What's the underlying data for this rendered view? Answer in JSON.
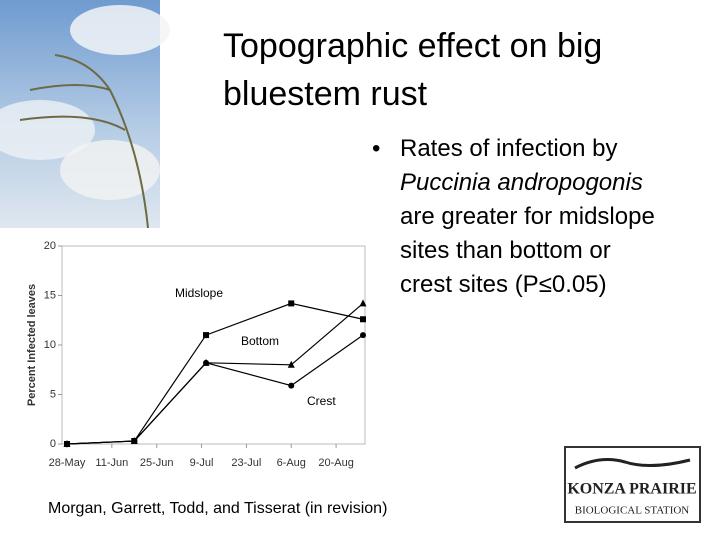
{
  "title": "Topographic effect on big bluestem rust",
  "bullet": {
    "parts": [
      "Rates of infection by ",
      "Puccinia andropogonis",
      " are greater for midslope sites than bottom or crest sites (P≤0.05)"
    ]
  },
  "citation": "Morgan, Garrett, Todd, and Tisserat (in revision)",
  "logo": {
    "line1": "KONZA PRAIRIE",
    "line2": "BIOLOGICAL STATION"
  },
  "chart_data": {
    "type": "line",
    "y_label": "Percent Infected leaves",
    "x": [
      0,
      1.5,
      3.1,
      5,
      6.6
    ],
    "xlim": [
      0,
      6.6
    ],
    "xticks": [
      {
        "value": 0,
        "label": "28-May"
      },
      {
        "value": 1,
        "label": "11-Jun"
      },
      {
        "value": 2,
        "label": "25-Jun"
      },
      {
        "value": 3,
        "label": "9-Jul"
      },
      {
        "value": 4,
        "label": "23-Jul"
      },
      {
        "value": 5,
        "label": "6-Aug"
      },
      {
        "value": 6,
        "label": "20-Aug"
      }
    ],
    "ylim": [
      0,
      20
    ],
    "yticks": [
      0,
      5,
      10,
      15,
      20
    ],
    "series": [
      {
        "name": "Midslope",
        "color": "#000000",
        "marker": "square",
        "values": [
          0,
          0.3,
          11,
          14.2,
          12.6
        ]
      },
      {
        "name": "Bottom",
        "color": "#000000",
        "marker": "triangle",
        "values": [
          0,
          0.3,
          8.2,
          8,
          14.2
        ]
      },
      {
        "name": "Crest",
        "color": "#000000",
        "marker": "circle",
        "values": [
          0,
          0.3,
          8.2,
          5.9,
          11
        ]
      }
    ]
  }
}
